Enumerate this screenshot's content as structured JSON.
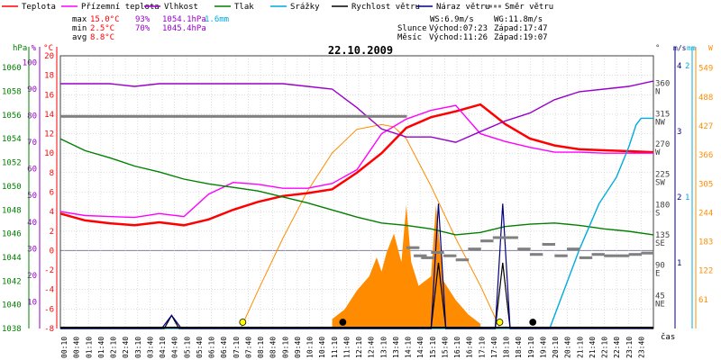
{
  "chart_data": {
    "type": "line",
    "title": "22.10.2009",
    "legend": [
      {
        "label": "Teplota",
        "color": "#ff0000"
      },
      {
        "label": "Přízemní teplota",
        "color": "#ff00ff"
      },
      {
        "label": "Vlhkost",
        "color": "#9900cc"
      },
      {
        "label": "Tlak",
        "color": "#008000"
      },
      {
        "label": "Srážky",
        "color": "#00aadd"
      },
      {
        "label": "Rychlost větru",
        "color": "#000000"
      },
      {
        "label": "Náraz větru",
        "color": "#000080"
      },
      {
        "label": "Směr větru",
        "color": "#808080"
      }
    ],
    "stats": {
      "rows": [
        {
          "label": "max",
          "temp": "15.0°C",
          "hum": "93%",
          "press": "1054.1hPa",
          "rain": "1.6mm"
        },
        {
          "label": "min",
          "temp": "2.5°C",
          "hum": "70%",
          "press": "1045.4hPa",
          "rain": ""
        },
        {
          "label": "avg",
          "temp": "8.8°C",
          "hum": "",
          "press": "",
          "rain": ""
        }
      ],
      "wind": [
        "WS:6.9m/s",
        "WG:11.8m/s"
      ],
      "sun": [
        "Slunce",
        "Východ:07:23",
        "Západ:17:47"
      ],
      "moon": [
        "Měsíc",
        "Východ:11:26",
        "Západ:19:07"
      ]
    },
    "axes": {
      "hpa_title": "hPa",
      "hpa_ticks": [
        "1060",
        "1058",
        "1056",
        "1054",
        "1052",
        "1050",
        "1048",
        "1046",
        "1044",
        "1042",
        "1040",
        "1038"
      ],
      "pct_title": "%",
      "pct_ticks": [
        "100",
        "90",
        "80",
        "70",
        "60",
        "50",
        "40",
        "30",
        "20",
        "10"
      ],
      "temp_title": "°C",
      "temp_ticks": [
        "20",
        "18",
        "16",
        "14",
        "12",
        "10",
        "8",
        "6",
        "4",
        "2",
        "0",
        "-2",
        "-4",
        "-6",
        "-8"
      ],
      "dir_title": "°",
      "dir_ticks": [
        {
          "deg": "360",
          "dir": "N"
        },
        {
          "deg": "315",
          "dir": "NW"
        },
        {
          "deg": "270",
          "dir": "W"
        },
        {
          "deg": "225",
          "dir": "SW"
        },
        {
          "deg": "180",
          "dir": "S"
        },
        {
          "deg": "135",
          "dir": "SE"
        },
        {
          "deg": "90",
          "dir": "E"
        },
        {
          "deg": "45",
          "dir": "NE"
        }
      ],
      "ms_title": "m/s",
      "ms_ticks": [
        "4",
        "3",
        "2",
        "1"
      ],
      "mm_title": "mm",
      "mm_ticks": [
        "2",
        "1"
      ],
      "sol_title": "W",
      "sol_ticks": [
        "549",
        "488",
        "427",
        "366",
        "305",
        "244",
        "183",
        "122",
        "61"
      ],
      "x_ticks": [
        "00:10",
        "00:40",
        "01:10",
        "01:40",
        "02:10",
        "02:40",
        "03:10",
        "03:40",
        "04:10",
        "04:40",
        "05:10",
        "05:40",
        "06:10",
        "06:40",
        "07:10",
        "07:40",
        "08:10",
        "08:40",
        "09:10",
        "09:40",
        "10:10",
        "10:40",
        "11:10",
        "11:40",
        "12:10",
        "12:40",
        "13:10",
        "13:40",
        "14:10",
        "14:40",
        "15:10",
        "15:40",
        "16:10",
        "16:40",
        "17:10",
        "17:40",
        "18:10",
        "18:40",
        "19:10",
        "19:40",
        "20:10",
        "20:40",
        "21:10",
        "21:40",
        "22:10",
        "22:40",
        "23:10",
        "23:40"
      ],
      "x_title": "čas"
    },
    "series": [
      {
        "name": "Teplota",
        "color": "#ff0000",
        "axis": "temp",
        "x": [
          0,
          1,
          2,
          3,
          4,
          5,
          6,
          7,
          8,
          9,
          10,
          11,
          12,
          13,
          14,
          15,
          16,
          17,
          18,
          19,
          20,
          21,
          22,
          23,
          24
        ],
        "y": [
          3.8,
          3.1,
          2.8,
          2.6,
          2.9,
          2.6,
          3.2,
          4.2,
          5.0,
          5.6,
          5.9,
          6.3,
          8.0,
          10.0,
          12.6,
          13.7,
          14.3,
          15.0,
          13.0,
          11.5,
          10.8,
          10.4,
          10.3,
          10.2,
          10.1
        ]
      },
      {
        "name": "Přízemní teplota",
        "color": "#ff00ff",
        "axis": "temp",
        "x": [
          0,
          1,
          2,
          3,
          4,
          5,
          6,
          7,
          8,
          9,
          10,
          11,
          12,
          13,
          14,
          15,
          16,
          17,
          18,
          19,
          20,
          21,
          22,
          23,
          24
        ],
        "y": [
          4.0,
          3.6,
          3.5,
          3.4,
          3.8,
          3.5,
          5.8,
          7.0,
          6.8,
          6.4,
          6.4,
          6.9,
          8.3,
          12.0,
          13.5,
          14.4,
          14.9,
          12.0,
          11.2,
          10.6,
          10.1,
          10.1,
          10.0,
          10.0,
          10.0
        ]
      },
      {
        "name": "Vlhkost",
        "color": "#9900cc",
        "axis": "pct",
        "x": [
          0,
          1,
          2,
          3,
          4,
          5,
          6,
          7,
          8,
          9,
          10,
          11,
          12,
          13,
          14,
          15,
          16,
          17,
          18,
          19,
          20,
          21,
          22,
          23,
          24
        ],
        "y": [
          92,
          92,
          92,
          91,
          92,
          92,
          92,
          92,
          92,
          92,
          91,
          90,
          83,
          75,
          72,
          72,
          70,
          74,
          78,
          81,
          86,
          89,
          90,
          91,
          93
        ]
      },
      {
        "name": "Tlak",
        "color": "#008000",
        "axis": "hpa",
        "x": [
          0,
          1,
          2,
          3,
          4,
          5,
          6,
          7,
          8,
          9,
          10,
          11,
          12,
          13,
          14,
          15,
          16,
          17,
          18,
          19,
          20,
          21,
          22,
          23,
          24
        ],
        "y": [
          1054.0,
          1053.0,
          1052.4,
          1051.7,
          1051.2,
          1050.6,
          1050.2,
          1049.9,
          1049.6,
          1049.1,
          1048.6,
          1048.0,
          1047.4,
          1046.9,
          1046.7,
          1046.4,
          1045.9,
          1046.1,
          1046.6,
          1046.8,
          1046.9,
          1046.7,
          1046.4,
          1046.2,
          1045.9
        ]
      },
      {
        "name": "Srážky",
        "color": "#00aadd",
        "axis": "mm",
        "x": [
          0,
          19.8,
          20.3,
          21.0,
          21.8,
          22.5,
          23.0,
          23.3,
          23.5,
          24
        ],
        "y": [
          0,
          0,
          0.25,
          0.6,
          0.95,
          1.15,
          1.38,
          1.55,
          1.6,
          1.6
        ]
      },
      {
        "name": "Rychlost větru",
        "color": "#000000",
        "axis": "ms",
        "x": [
          0,
          4.2,
          4.5,
          4.8,
          15.0,
          15.3,
          15.6,
          17.6,
          17.9,
          18.2,
          24
        ],
        "y": [
          0,
          0,
          0.2,
          0,
          0,
          1.0,
          0,
          0,
          1.0,
          0,
          0
        ]
      },
      {
        "name": "Náraz větru",
        "color": "#000080",
        "axis": "ms",
        "x": [
          0,
          4.1,
          4.5,
          4.9,
          15.0,
          15.3,
          15.6,
          17.6,
          17.9,
          18.2,
          24
        ],
        "y": [
          0,
          0,
          0.2,
          0,
          0,
          1.9,
          0,
          0,
          1.9,
          0,
          0
        ]
      }
    ],
    "solar": {
      "name": "solar",
      "axis": "sol",
      "x": [
        7.3,
        8,
        9,
        10,
        11,
        12,
        13,
        13.5,
        14,
        15,
        16,
        17,
        17.8
      ],
      "y": [
        0,
        80,
        190,
        290,
        370,
        420,
        430,
        425,
        400,
        300,
        190,
        90,
        0
      ]
    },
    "solar_area": {
      "axis": "sol",
      "x": [
        11.0,
        11.5,
        12.0,
        12.5,
        12.8,
        13.0,
        13.2,
        13.5,
        13.8,
        14.0,
        14.2,
        14.5,
        15.0,
        15.2,
        15.5,
        16.0,
        16.5,
        17.0
      ],
      "y": [
        20,
        40,
        80,
        110,
        150,
        120,
        160,
        200,
        140,
        260,
        140,
        90,
        110,
        260,
        100,
        60,
        30,
        10
      ]
    },
    "wind_dir_dots": {
      "axis": "dir",
      "x": [
        0,
        1,
        2,
        3,
        4,
        5,
        6,
        7,
        8,
        9,
        10,
        11,
        12,
        13,
        14,
        14.3,
        14.6,
        15,
        15.5,
        16,
        16.5,
        17,
        17.5,
        18,
        18.5,
        19,
        19.5,
        20,
        20.5,
        21,
        21.5,
        22,
        22.5,
        23,
        23.5
      ],
      "y": [
        315,
        315,
        315,
        315,
        315,
        315,
        315,
        315,
        315,
        315,
        315,
        315,
        315,
        315,
        120,
        108,
        105,
        113,
        108,
        102,
        118,
        130,
        135,
        135,
        118,
        110,
        125,
        108,
        118,
        105,
        110,
        108,
        108,
        110,
        112
      ]
    },
    "events": [
      {
        "x": 7.38,
        "kind": "sunrise"
      },
      {
        "x": 17.78,
        "kind": "sunset"
      },
      {
        "x": 11.43,
        "kind": "moonrise"
      },
      {
        "x": 19.12,
        "kind": "moonset"
      }
    ]
  }
}
